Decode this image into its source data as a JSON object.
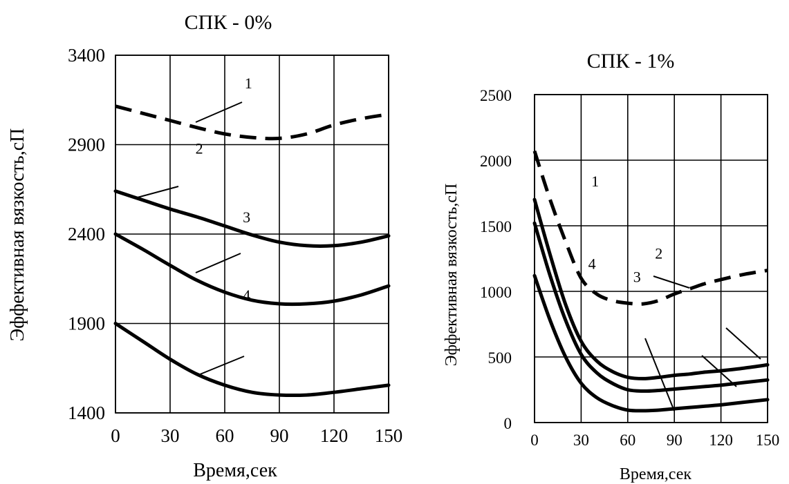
{
  "chart_data": [
    {
      "type": "line",
      "title": "СПК - 0%",
      "xlabel": "Время,сек",
      "ylabel": "Эффективная вязкость,сП",
      "xlim": [
        0,
        150
      ],
      "ylim": [
        1400,
        3400
      ],
      "x_ticks": [
        0,
        30,
        60,
        90,
        120,
        150
      ],
      "y_ticks": [
        1400,
        1900,
        2400,
        2900,
        3400
      ],
      "grid": true,
      "series": [
        {
          "style": "dashed",
          "x": [
            0,
            15,
            30,
            45,
            60,
            75,
            90,
            105,
            120,
            135,
            150
          ],
          "values": [
            3115,
            3075,
            3035,
            2995,
            2960,
            2940,
            2935,
            2960,
            3010,
            3045,
            3070
          ]
        },
        {
          "style": "solid",
          "x": [
            0,
            15,
            30,
            45,
            60,
            75,
            90,
            105,
            120,
            135,
            150
          ],
          "values": [
            2640,
            2590,
            2540,
            2495,
            2445,
            2395,
            2355,
            2335,
            2335,
            2355,
            2390
          ]
        },
        {
          "style": "solid",
          "x": [
            0,
            15,
            30,
            45,
            60,
            75,
            90,
            105,
            120,
            135,
            150
          ],
          "values": [
            2400,
            2315,
            2225,
            2140,
            2075,
            2030,
            2010,
            2010,
            2025,
            2060,
            2110
          ]
        },
        {
          "style": "solid",
          "x": [
            0,
            15,
            30,
            45,
            60,
            75,
            90,
            105,
            120,
            135,
            150
          ],
          "values": [
            1900,
            1800,
            1700,
            1615,
            1555,
            1515,
            1500,
            1500,
            1515,
            1535,
            1555
          ]
        }
      ],
      "annotations": [
        {
          "text": "1",
          "x": 73,
          "y": 3215
        },
        {
          "text": "2",
          "x": 46,
          "y": 2850
        },
        {
          "text": "3",
          "x": 72,
          "y": 2465
        },
        {
          "text": "4",
          "x": 72,
          "y": 2030
        }
      ]
    },
    {
      "type": "line",
      "title": "СПК - 1%",
      "xlabel": "Время,сек",
      "ylabel": "Эффективная вязкость,сП",
      "xlim": [
        0,
        150
      ],
      "ylim": [
        0,
        2500
      ],
      "x_ticks": [
        0,
        30,
        60,
        90,
        120,
        150
      ],
      "y_ticks": [
        0,
        500,
        1000,
        1500,
        2000,
        2500
      ],
      "grid": true,
      "series": [
        {
          "style": "dashed",
          "x": [
            0,
            10,
            20,
            30,
            40,
            50,
            60,
            70,
            80,
            90,
            100,
            110,
            120,
            135,
            150
          ],
          "values": [
            2070,
            1700,
            1380,
            1100,
            980,
            930,
            910,
            905,
            930,
            980,
            1020,
            1060,
            1090,
            1130,
            1160
          ]
        },
        {
          "style": "solid",
          "x": [
            0,
            10,
            20,
            30,
            40,
            50,
            60,
            70,
            80,
            90,
            100,
            110,
            120,
            135,
            150
          ],
          "values": [
            1700,
            1280,
            900,
            620,
            470,
            390,
            345,
            335,
            345,
            360,
            370,
            385,
            395,
            415,
            440
          ]
        },
        {
          "style": "solid",
          "x": [
            0,
            10,
            20,
            30,
            40,
            50,
            60,
            70,
            80,
            90,
            100,
            110,
            120,
            135,
            150
          ],
          "values": [
            1520,
            1120,
            780,
            520,
            380,
            300,
            250,
            240,
            245,
            255,
            265,
            275,
            285,
            305,
            325
          ]
        },
        {
          "style": "solid",
          "x": [
            0,
            10,
            20,
            30,
            40,
            50,
            60,
            70,
            80,
            90,
            100,
            110,
            120,
            135,
            150
          ],
          "values": [
            1120,
            780,
            500,
            300,
            190,
            130,
            95,
            90,
            95,
            105,
            115,
            125,
            135,
            155,
            175
          ]
        }
      ],
      "annotations": [
        {
          "text": "1",
          "x": 39,
          "y": 1800
        },
        {
          "text": "2",
          "x": 80,
          "y": 1250
        },
        {
          "text": "3",
          "x": 66,
          "y": 1070
        },
        {
          "text": "4",
          "x": 37,
          "y": 1170
        }
      ]
    }
  ]
}
